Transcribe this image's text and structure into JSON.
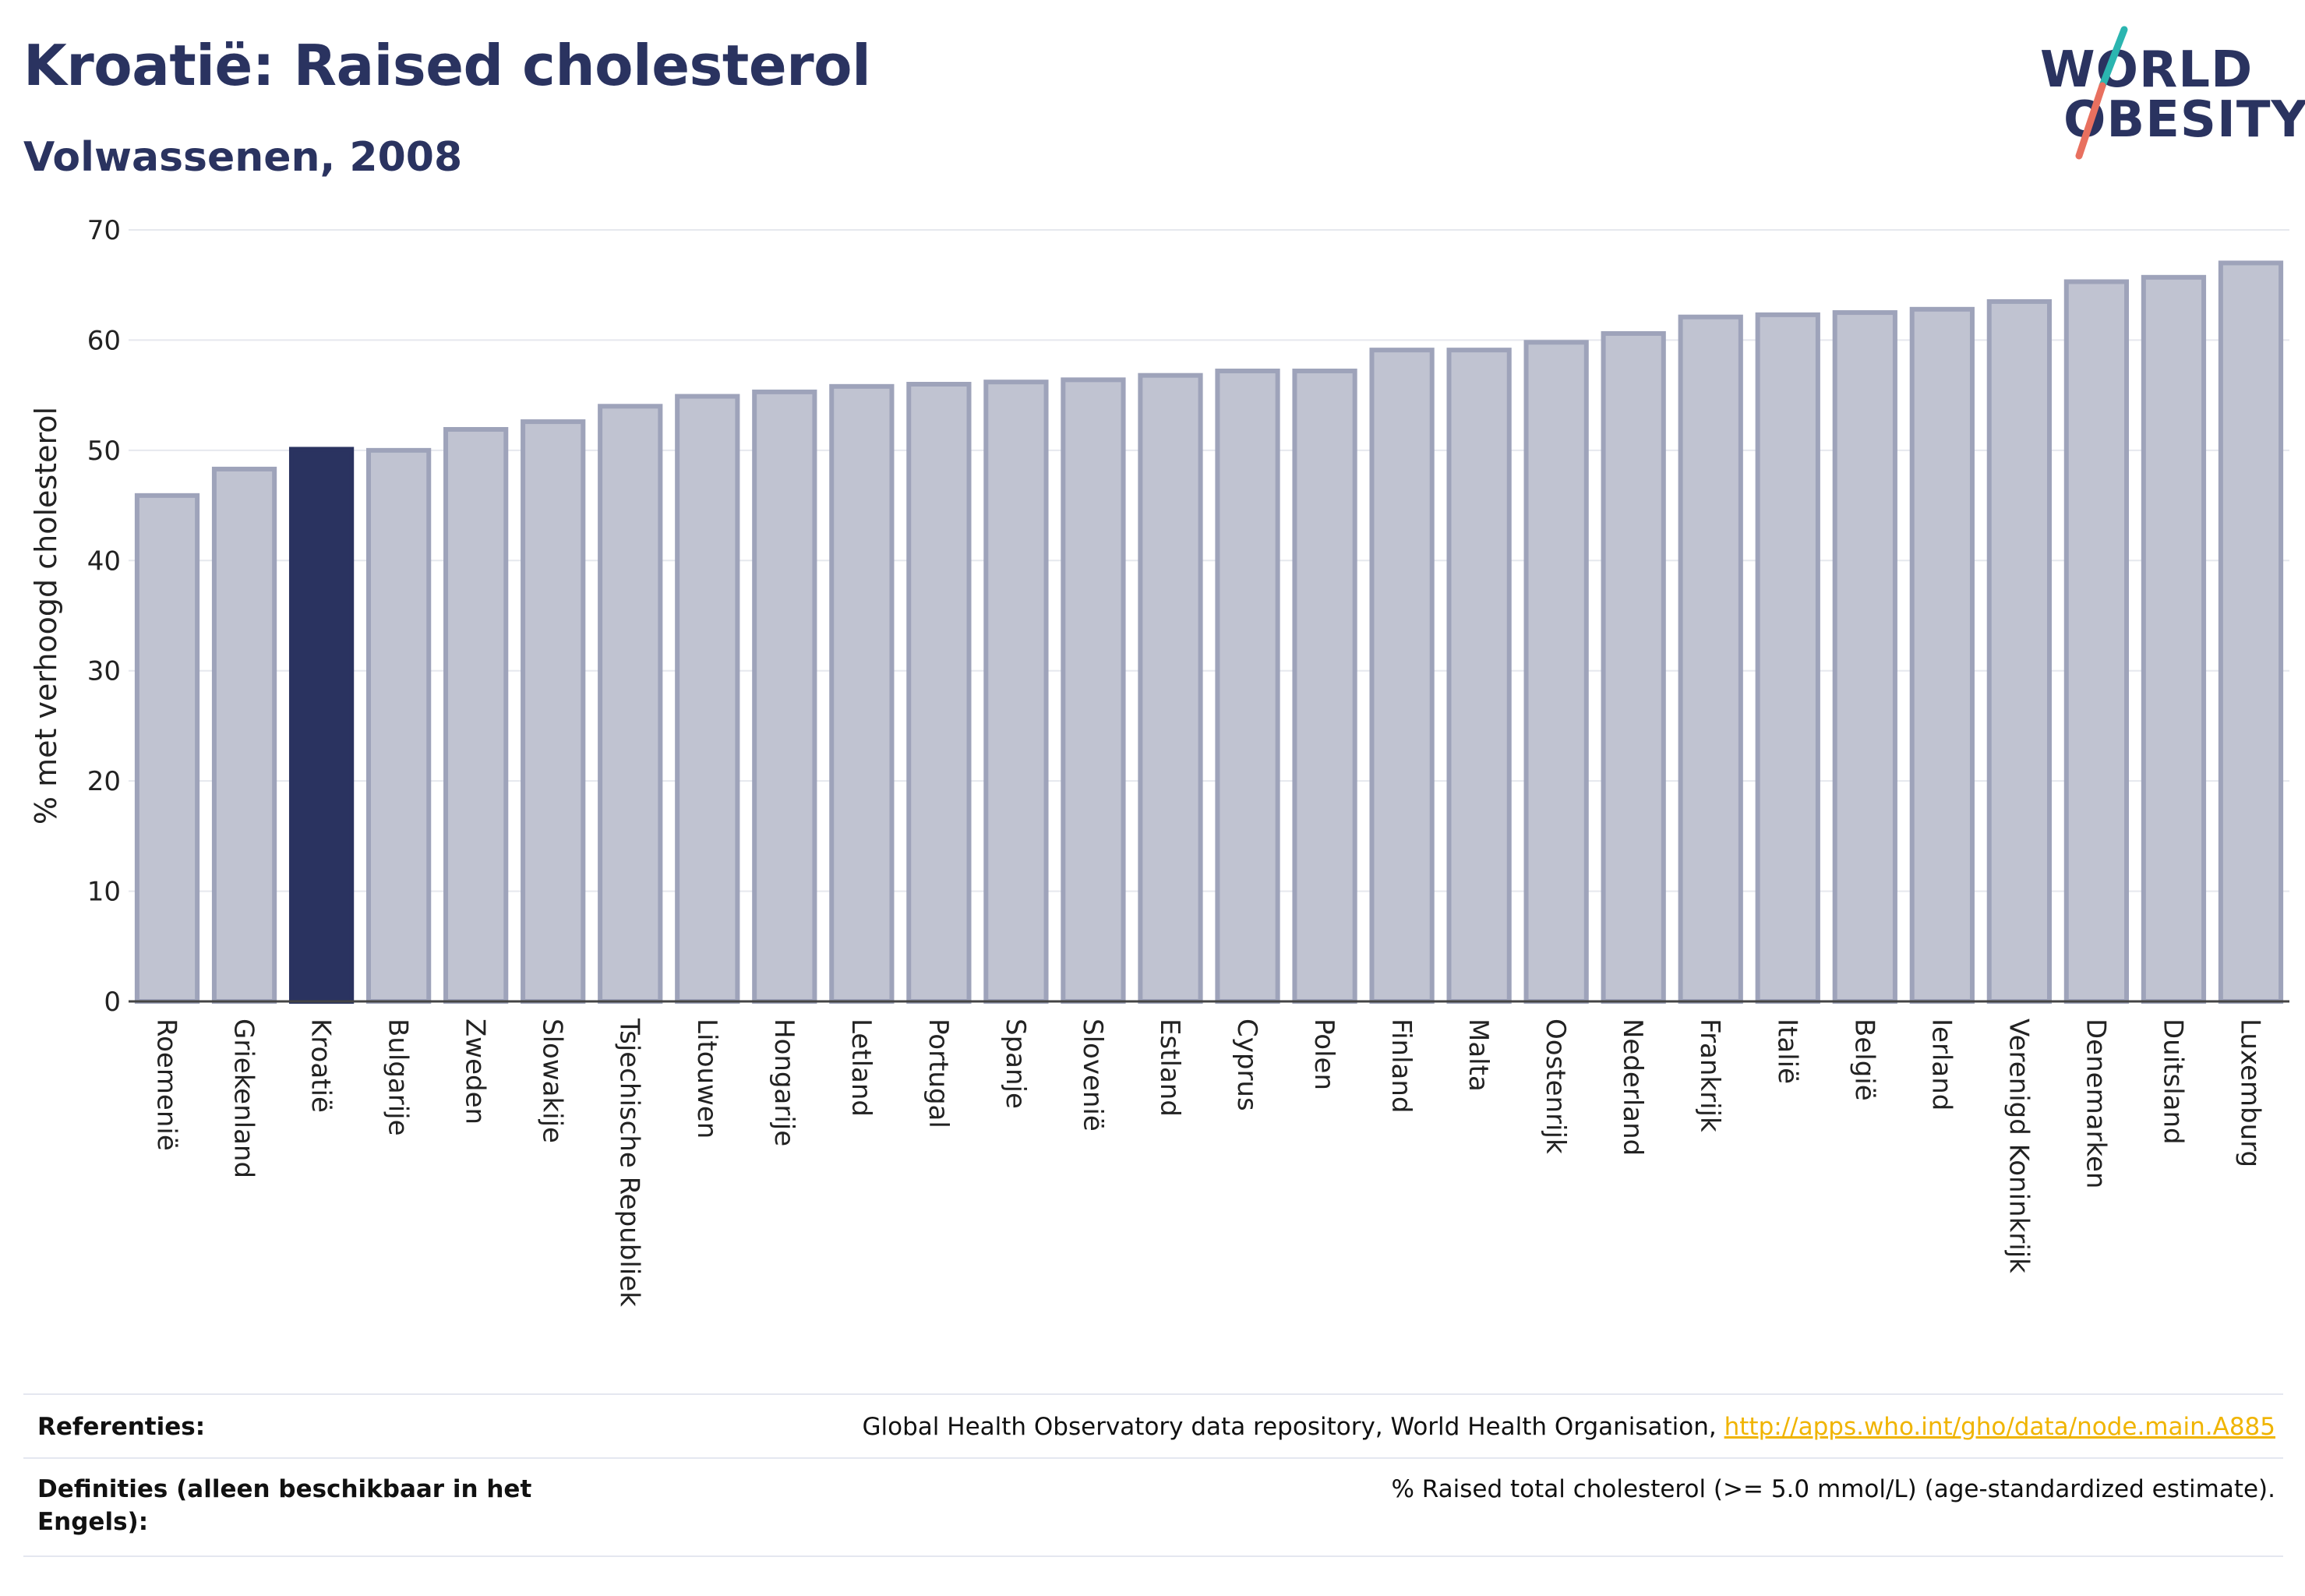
{
  "header": {
    "title": "Kroatië: Raised cholesterol",
    "subtitle": "Volwassenen, 2008"
  },
  "logo": {
    "line1": "WORLD",
    "line2": "OBESITY"
  },
  "colors": {
    "highlight": "#2a3360",
    "bar_fill": "#c0c3d1",
    "bar_stroke": "#9ea3ba",
    "logo_teal": "#2bb5b0",
    "logo_coral": "#e8705f",
    "link": "#f0b400"
  },
  "chart_data": {
    "type": "bar",
    "ylabel": "% met verhoogd cholesterol",
    "ylim": [
      0,
      70
    ],
    "yticks": [
      0,
      10,
      20,
      30,
      40,
      50,
      60,
      70
    ],
    "grid": true,
    "highlight": "Kroatië",
    "categories": [
      "Roemenië",
      "Griekenland",
      "Kroatië",
      "Bulgarije",
      "Zweden",
      "Slowakije",
      "Tsjechische Republiek",
      "Litouwen",
      "Hongarije",
      "Letland",
      "Portugal",
      "Spanje",
      "Slovenië",
      "Estland",
      "Cyprus",
      "Polen",
      "Finland",
      "Malta",
      "Oostenrijk",
      "Nederland",
      "Frankrijk",
      "Italië",
      "België",
      "Ierland",
      "Verenigd Koninkrijk",
      "Denemarken",
      "Duitsland",
      "Luxemburg"
    ],
    "values": [
      45.9,
      48.3,
      50.1,
      50.0,
      51.9,
      52.6,
      54.0,
      54.9,
      55.3,
      55.8,
      56.0,
      56.2,
      56.4,
      56.8,
      57.2,
      57.2,
      59.1,
      59.1,
      59.8,
      60.6,
      62.1,
      62.3,
      62.5,
      62.8,
      63.5,
      65.3,
      65.7,
      67.0
    ]
  },
  "footer": {
    "references_label": "Referenties:",
    "references_text": "Global Health Observatory data repository, World Health Organisation,",
    "references_link": "http://apps.who.int/gho/data/node.main.A885",
    "definitions_label": "Definities (alleen beschikbaar in het Engels):",
    "definitions_text": "% Raised total cholesterol (>= 5.0 mmol/L) (age-standardized estimate)."
  }
}
